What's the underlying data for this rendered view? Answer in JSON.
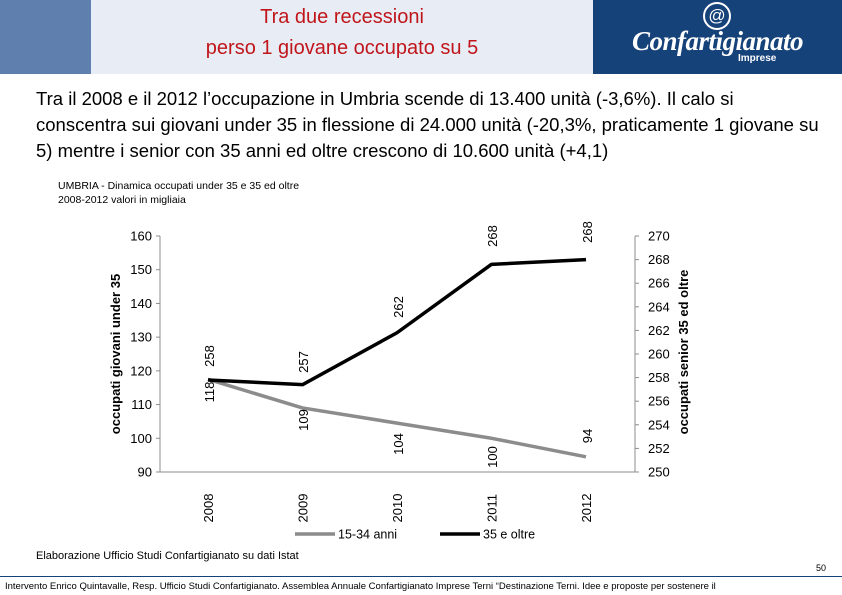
{
  "header": {
    "title_line1": "Tra due recessioni",
    "title_line2": "perso 1 giovane occupato su 5",
    "logo_symbol": "@",
    "logo_text": "Confartigianato",
    "logo_sub": "Imprese"
  },
  "intro_text": "Tra il 2008 e il 2012 l’occupazione in Umbria scende di 13.400 unità (-3,6%). Il calo si conscentra sui giovani under 35 in flessione di 24.000 unità (-20,3%, praticamente 1 giovane su 5) mentre i senior con 35 anni ed oltre crescono di 10.600 unità (+4,1)",
  "chart_data": {
    "type": "line",
    "title": "UMBRIA - Dinamica occupati under 35 e 35 ed oltre",
    "subtitle": "2008-2012 valori in migliaia",
    "categories": [
      "2008",
      "2009",
      "2010",
      "2011",
      "2012"
    ],
    "series": [
      {
        "name": "15-34 anni",
        "axis": "left",
        "color": "#8c8c8c",
        "values": [
          118,
          109,
          104,
          100,
          94
        ]
      },
      {
        "name": "35 e oltre",
        "axis": "right",
        "color": "#000000",
        "values": [
          258,
          257,
          262,
          268,
          268
        ]
      }
    ],
    "series_plotted": [
      {
        "axis": "left",
        "values": [
          117.5,
          109,
          104.5,
          100,
          94.5
        ]
      },
      {
        "axis": "right",
        "values": [
          257.8,
          257.4,
          261.8,
          267.6,
          268.0
        ]
      }
    ],
    "ylabel": "occupati giovani under 35",
    "y2label": "occupati senior 35 ed oltre",
    "ylim": [
      90,
      160
    ],
    "yticks": [
      "90",
      "100",
      "110",
      "120",
      "130",
      "140",
      "150",
      "160"
    ],
    "y2lim": [
      250,
      270
    ],
    "y2ticks": [
      "250",
      "252",
      "254",
      "256",
      "258",
      "260",
      "262",
      "264",
      "266",
      "268",
      "270"
    ],
    "grid": false,
    "legend": "bottom"
  },
  "source": "Elaborazione Ufficio Studi Confartigianato su dati Istat",
  "page_number": "50",
  "footer": "Intervento Enrico Quintavalle, Resp. Ufficio Studi Confartigianato. Assemblea Annuale Confartigianato Imprese Terni “Destinazione Terni. Idee e proposte per sostenere il"
}
